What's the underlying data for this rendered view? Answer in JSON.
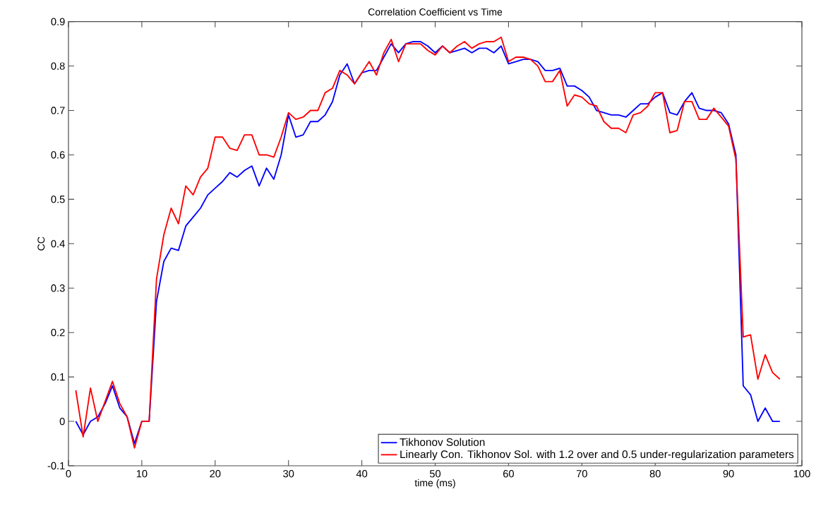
{
  "chart_data": {
    "type": "line",
    "title": "Correlation Coefficient vs Time",
    "xlabel": "time (ms)",
    "ylabel": "CC",
    "x": [
      1,
      2,
      3,
      4,
      5,
      6,
      7,
      8,
      9,
      10,
      11,
      12,
      13,
      14,
      15,
      16,
      17,
      18,
      19,
      20,
      21,
      22,
      23,
      24,
      25,
      26,
      27,
      28,
      29,
      30,
      31,
      32,
      33,
      34,
      35,
      36,
      37,
      38,
      39,
      40,
      41,
      42,
      43,
      44,
      45,
      46,
      47,
      48,
      49,
      50,
      51,
      52,
      53,
      54,
      55,
      56,
      57,
      58,
      59,
      60,
      61,
      62,
      63,
      64,
      65,
      66,
      67,
      68,
      69,
      70,
      71,
      72,
      73,
      74,
      75,
      76,
      77,
      78,
      79,
      80,
      81,
      82,
      83,
      84,
      85,
      86,
      87,
      88,
      89,
      90,
      91,
      92,
      93,
      94,
      95,
      96,
      97
    ],
    "series": [
      {
        "name": "Tikhonov Solution",
        "color": "#0000ff",
        "values": [
          0.0,
          -0.03,
          0.0,
          0.01,
          0.04,
          0.08,
          0.03,
          0.01,
          -0.05,
          0.0,
          0.0,
          0.27,
          0.36,
          0.39,
          0.385,
          0.44,
          0.46,
          0.48,
          0.51,
          0.525,
          0.54,
          0.56,
          0.55,
          0.565,
          0.575,
          0.53,
          0.57,
          0.545,
          0.6,
          0.69,
          0.64,
          0.645,
          0.675,
          0.675,
          0.69,
          0.72,
          0.78,
          0.805,
          0.76,
          0.785,
          0.79,
          0.79,
          0.82,
          0.85,
          0.83,
          0.85,
          0.855,
          0.855,
          0.845,
          0.83,
          0.845,
          0.83,
          0.835,
          0.84,
          0.83,
          0.84,
          0.84,
          0.83,
          0.845,
          0.805,
          0.81,
          0.815,
          0.815,
          0.81,
          0.79,
          0.79,
          0.795,
          0.755,
          0.755,
          0.745,
          0.73,
          0.7,
          0.695,
          0.69,
          0.69,
          0.685,
          0.7,
          0.715,
          0.715,
          0.73,
          0.74,
          0.695,
          0.69,
          0.72,
          0.74,
          0.705,
          0.7,
          0.7,
          0.695,
          0.67,
          0.6,
          0.08,
          0.06,
          0.0,
          0.03,
          0.0,
          0.0
        ]
      },
      {
        "name": "Linearly Con. Tikhonov Sol. with 1.2 over and 0.5 under-regularization parameters",
        "color": "#ff0000",
        "values": [
          0.07,
          -0.035,
          0.075,
          0.0,
          0.045,
          0.09,
          0.04,
          0.01,
          -0.06,
          0.0,
          0.0,
          0.32,
          0.42,
          0.48,
          0.445,
          0.53,
          0.51,
          0.55,
          0.57,
          0.64,
          0.64,
          0.615,
          0.61,
          0.645,
          0.645,
          0.6,
          0.6,
          0.595,
          0.64,
          0.695,
          0.68,
          0.685,
          0.7,
          0.7,
          0.74,
          0.75,
          0.79,
          0.78,
          0.76,
          0.785,
          0.81,
          0.78,
          0.83,
          0.86,
          0.81,
          0.85,
          0.85,
          0.85,
          0.835,
          0.825,
          0.845,
          0.83,
          0.845,
          0.855,
          0.84,
          0.85,
          0.855,
          0.855,
          0.865,
          0.81,
          0.82,
          0.82,
          0.815,
          0.8,
          0.765,
          0.765,
          0.79,
          0.71,
          0.735,
          0.73,
          0.715,
          0.71,
          0.675,
          0.66,
          0.66,
          0.65,
          0.69,
          0.695,
          0.71,
          0.74,
          0.74,
          0.65,
          0.655,
          0.72,
          0.72,
          0.68,
          0.68,
          0.705,
          0.685,
          0.665,
          0.59,
          0.19,
          0.195,
          0.095,
          0.15,
          0.11,
          0.095
        ]
      }
    ],
    "xlim": [
      0,
      100
    ],
    "ylim": [
      -0.1,
      0.9
    ],
    "xticks": [
      0,
      10,
      20,
      30,
      40,
      50,
      60,
      70,
      80,
      90,
      100
    ],
    "yticks": [
      -0.1,
      0,
      0.1,
      0.2,
      0.3,
      0.4,
      0.5,
      0.6,
      0.7,
      0.8,
      0.9
    ],
    "legend": "bottom right",
    "grid": false,
    "marker": "none",
    "line_style": "solid"
  }
}
